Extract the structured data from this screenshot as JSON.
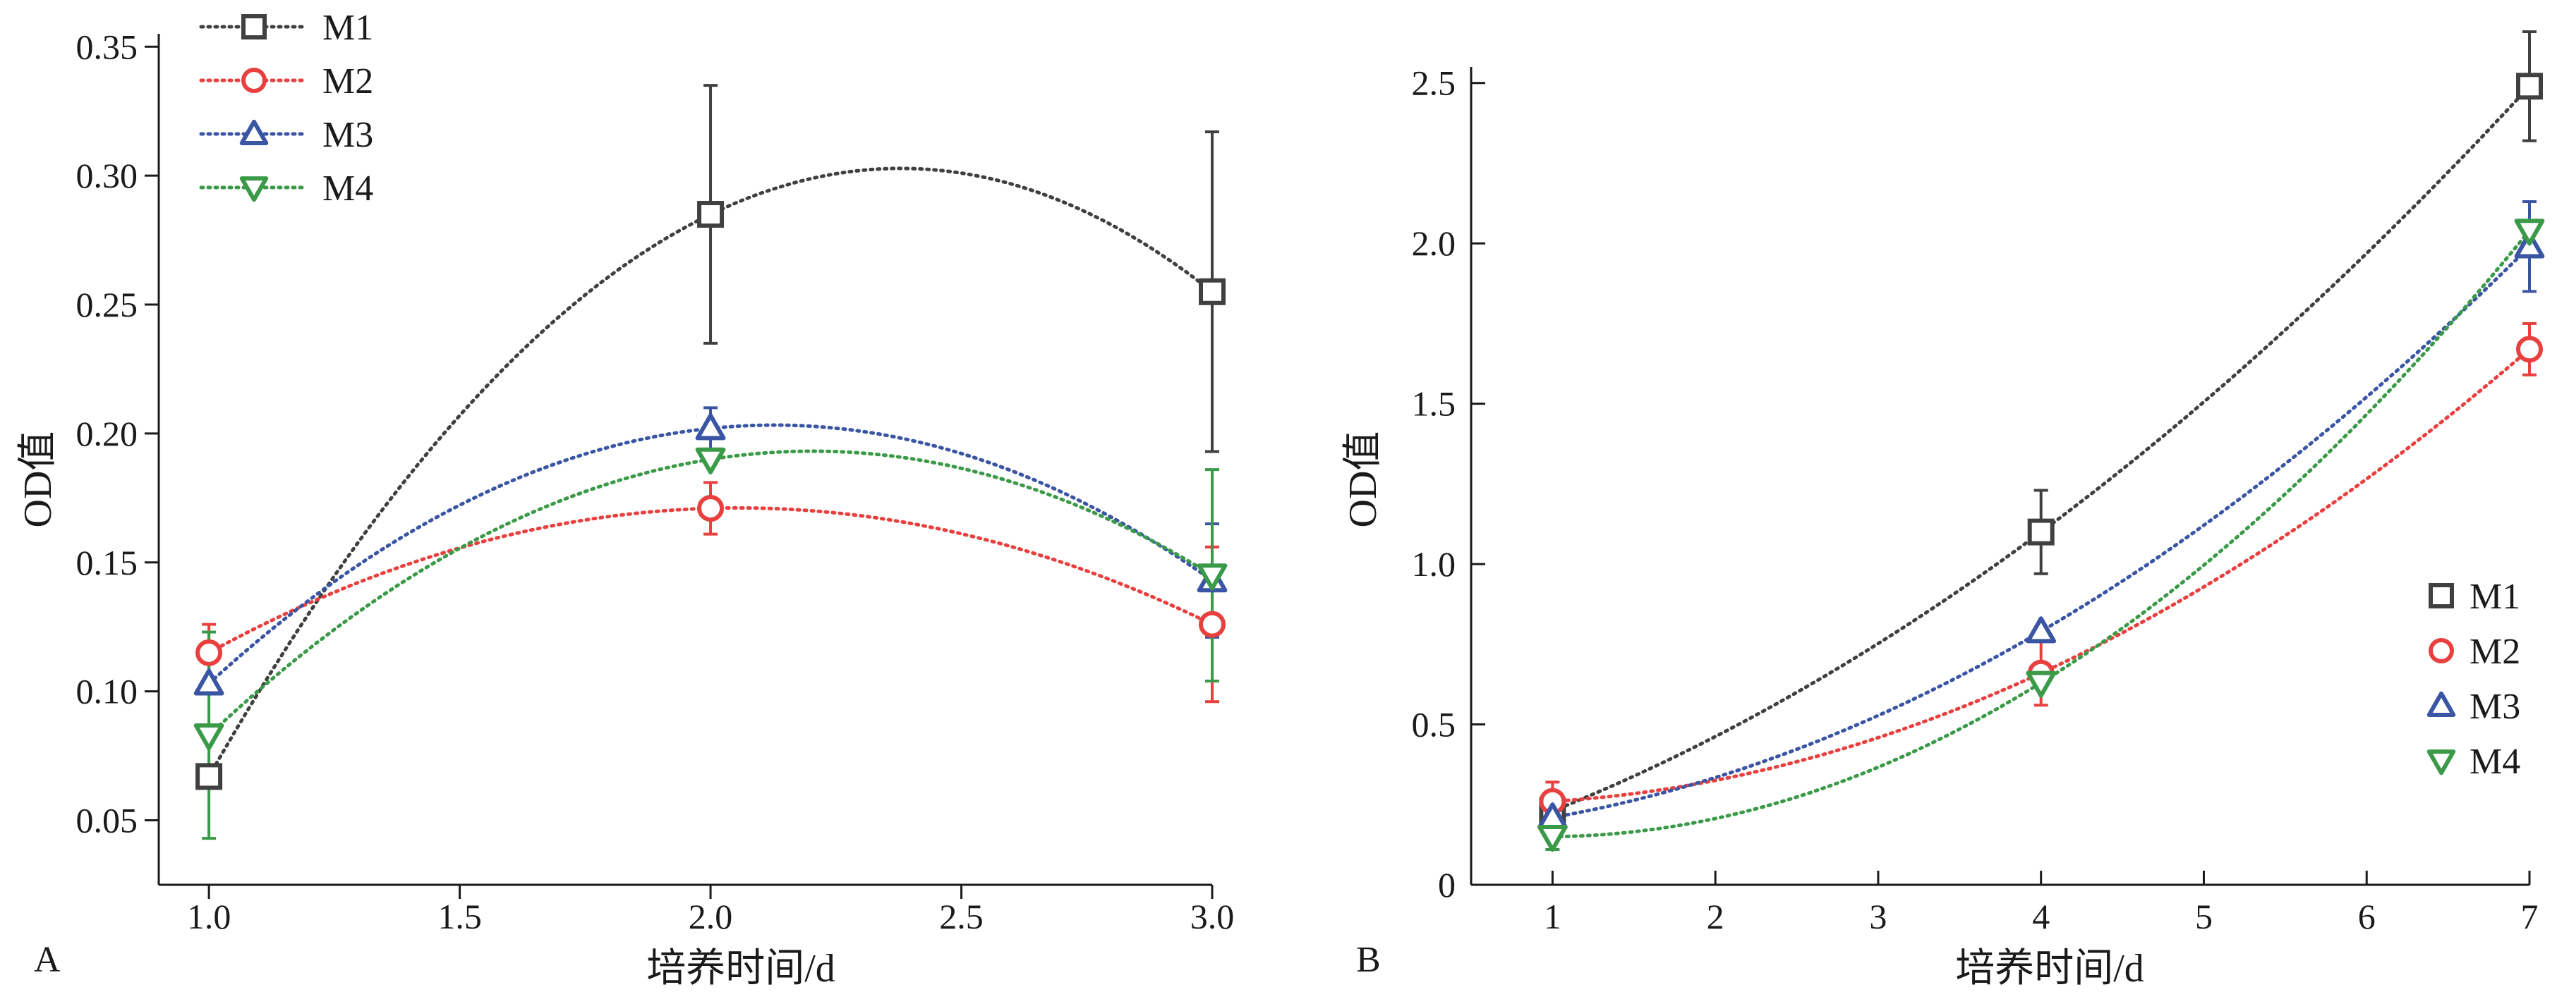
{
  "colors": {
    "M1": "#404040",
    "M2": "#e8403f",
    "M3": "#3a55a4",
    "M4": "#3a9a48"
  },
  "markers": {
    "M1": "square",
    "M2": "circle",
    "M3": "triangle-up",
    "M4": "triangle-down"
  },
  "chart_data": [
    {
      "panel_label": "A",
      "type": "line",
      "curve": "dotted quadratic fit with markers and error bars",
      "xlabel": "培养时间/d",
      "ylabel": "OD值",
      "xlim": [
        0.9,
        3.0
      ],
      "ylim": [
        0.025,
        0.355
      ],
      "xticks": [
        1.0,
        1.5,
        2.0,
        2.5,
        3.0
      ],
      "xtick_labels": [
        "1.0",
        "1.5",
        "2.0",
        "2.5",
        "3.0"
      ],
      "yticks": [
        0.05,
        0.1,
        0.15,
        0.2,
        0.25,
        0.3,
        0.35
      ],
      "ytick_labels": [
        "0.05",
        "0.10",
        "0.15",
        "0.20",
        "0.25",
        "0.30",
        "0.35"
      ],
      "legend_position": "top-left",
      "legend_style": "line-and-marker",
      "grid": false,
      "x": [
        1,
        2,
        3
      ],
      "series": [
        {
          "name": "M1",
          "values": [
            0.067,
            0.285,
            0.255
          ],
          "errors": [
            0.0,
            0.05,
            0.062
          ]
        },
        {
          "name": "M2",
          "values": [
            0.115,
            0.171,
            0.126
          ],
          "errors": [
            0.011,
            0.01,
            0.03
          ]
        },
        {
          "name": "M3",
          "values": [
            0.103,
            0.202,
            0.143
          ],
          "errors": [
            0.0,
            0.008,
            0.022
          ]
        },
        {
          "name": "M4",
          "values": [
            0.083,
            0.19,
            0.145
          ],
          "errors": [
            0.04,
            0.0,
            0.041
          ]
        }
      ]
    },
    {
      "panel_label": "B",
      "type": "line",
      "curve": "dotted quadratic fit with markers and error bars",
      "xlabel": "培养时间/d",
      "ylabel": "OD值",
      "xlim": [
        0.5,
        7.0
      ],
      "ylim": [
        0,
        2.55
      ],
      "xticks": [
        1,
        2,
        3,
        4,
        5,
        6,
        7
      ],
      "xtick_labels": [
        "1",
        "2",
        "3",
        "4",
        "5",
        "6",
        "7"
      ],
      "yticks": [
        0,
        0.5,
        1.0,
        1.5,
        2.0,
        2.5
      ],
      "ytick_labels": [
        "0",
        "0.5",
        "1.0",
        "1.5",
        "2.0",
        "2.5"
      ],
      "legend_position": "right",
      "legend_style": "marker-only",
      "grid": false,
      "x": [
        1,
        4,
        7
      ],
      "series": [
        {
          "name": "M1",
          "values": [
            0.23,
            1.1,
            2.49
          ],
          "errors": [
            0.03,
            0.13,
            0.17
          ]
        },
        {
          "name": "M2",
          "values": [
            0.26,
            0.66,
            1.67
          ],
          "errors": [
            0.06,
            0.1,
            0.08
          ]
        },
        {
          "name": "M3",
          "values": [
            0.21,
            0.79,
            1.99
          ],
          "errors": [
            0.03,
            0.0,
            0.14
          ]
        },
        {
          "name": "M4",
          "values": [
            0.15,
            0.63,
            2.04
          ],
          "errors": [
            0.04,
            0.0,
            0.0
          ]
        }
      ]
    }
  ]
}
